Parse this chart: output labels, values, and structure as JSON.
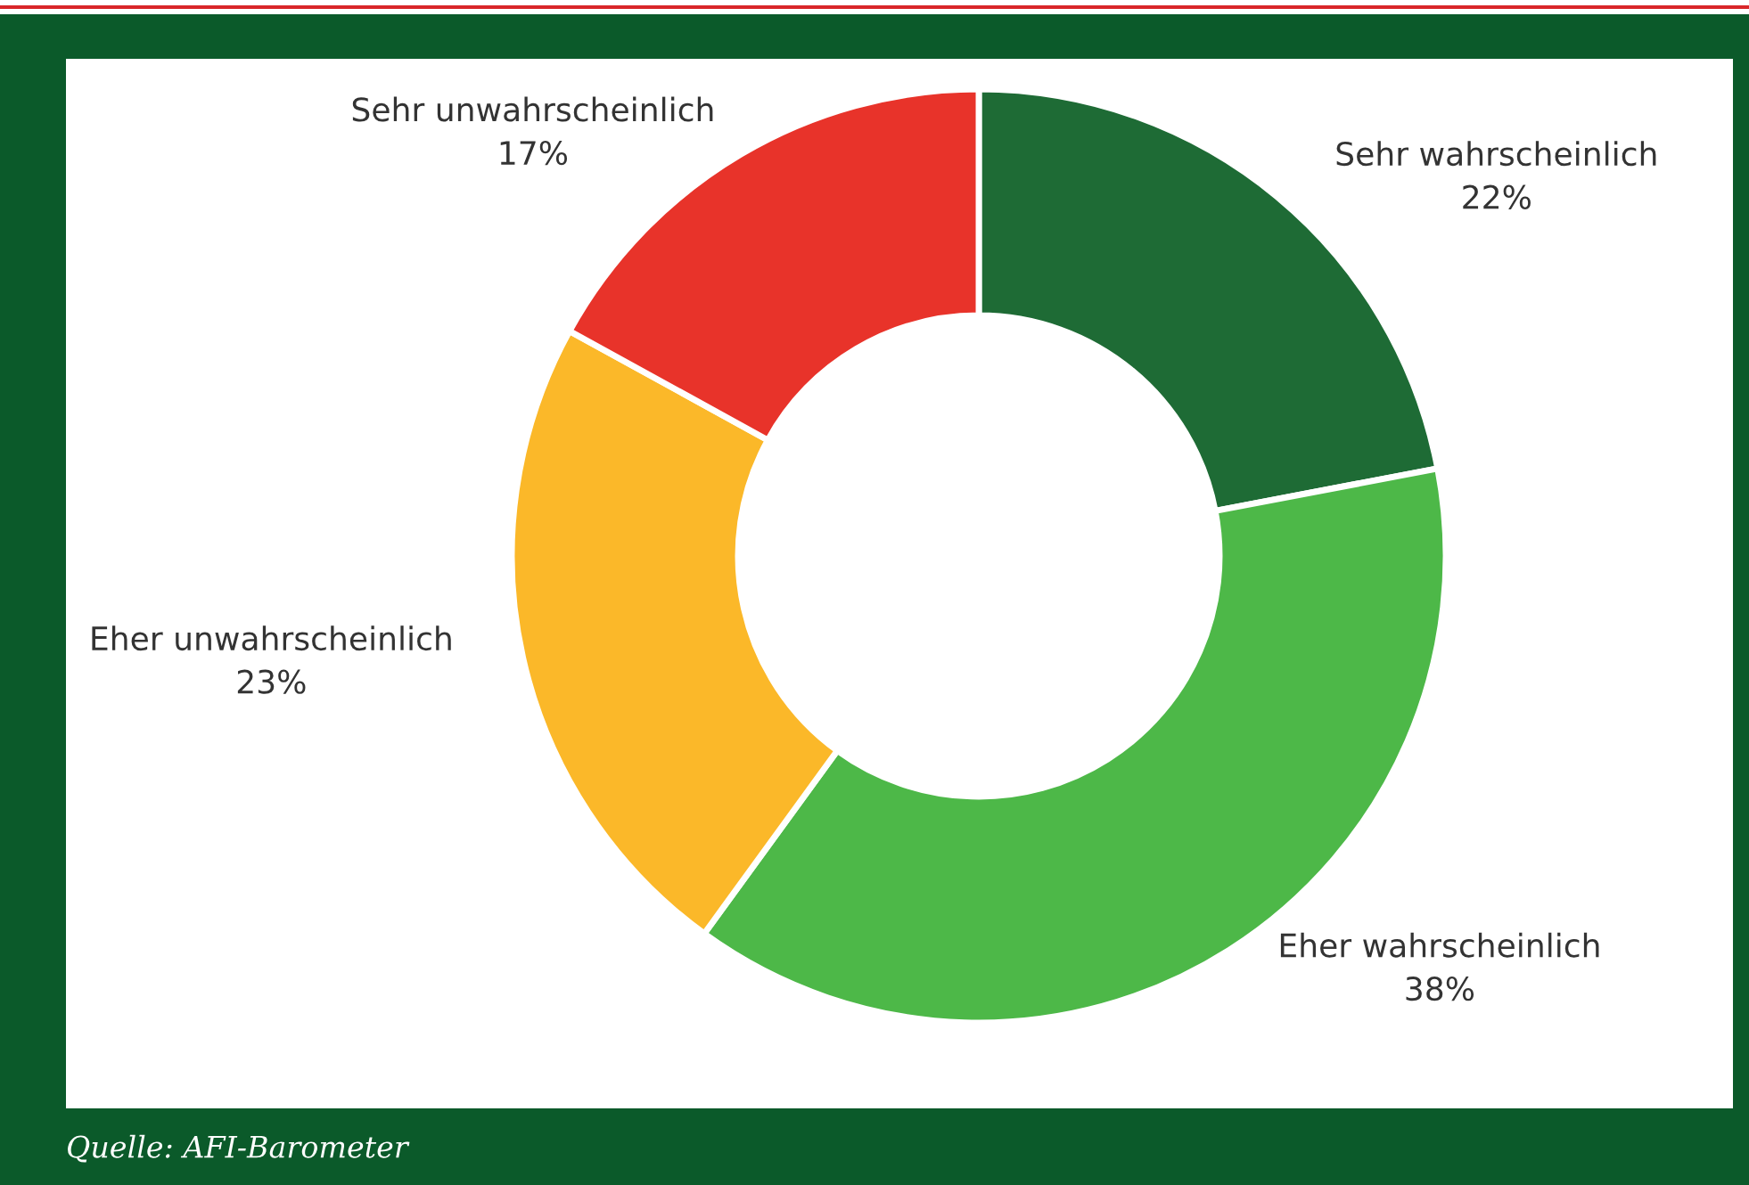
{
  "chart_data": {
    "type": "donut",
    "categories": [
      "Sehr wahrscheinlich",
      "Eher wahrscheinlich",
      "Eher unwahrscheinlich",
      "Sehr unwahrscheinlich"
    ],
    "values": [
      22,
      38,
      23,
      17
    ],
    "value_labels": [
      "22%",
      "38%",
      "23%",
      "17%"
    ],
    "colors": [
      "#1e6b35",
      "#4db848",
      "#fbb829",
      "#e8332a"
    ],
    "legend": false,
    "annotations": [
      "Quelle: AFI-Barometer"
    ]
  }
}
